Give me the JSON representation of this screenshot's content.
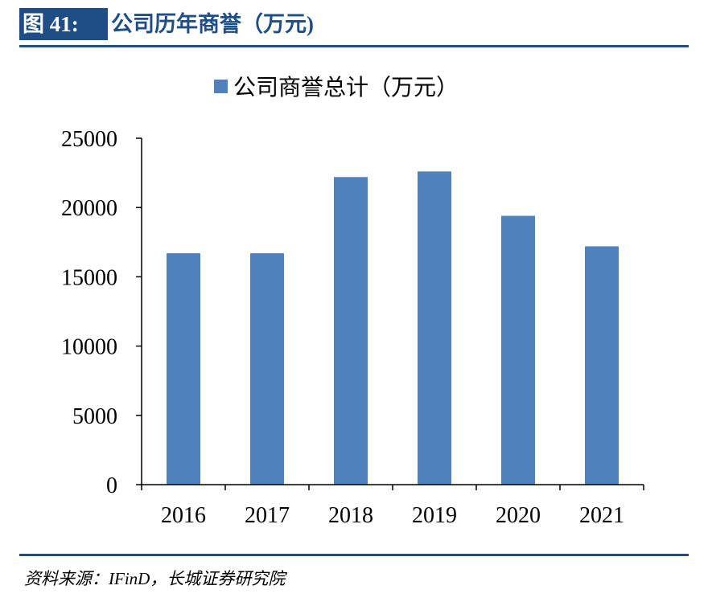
{
  "header": {
    "figure_label": "图 41:",
    "title": "公司历年商誉（万元)"
  },
  "footer": {
    "source": "资料来源：IFinD，长城证券研究院"
  },
  "colors": {
    "brand": "#1f4e87",
    "bar": "#4f81bd"
  },
  "chart_data": {
    "type": "bar",
    "categories": [
      "2016",
      "2017",
      "2018",
      "2019",
      "2020",
      "2021"
    ],
    "series": [
      {
        "name": "公司商誉总计（万元）",
        "values": [
          16700,
          16700,
          22200,
          22600,
          19400,
          17200
        ]
      }
    ],
    "yticks": [
      "0",
      "5000",
      "10000",
      "15000",
      "20000",
      "25000"
    ],
    "ylim": [
      0,
      25000
    ],
    "legend": "top-center",
    "grid": false
  }
}
